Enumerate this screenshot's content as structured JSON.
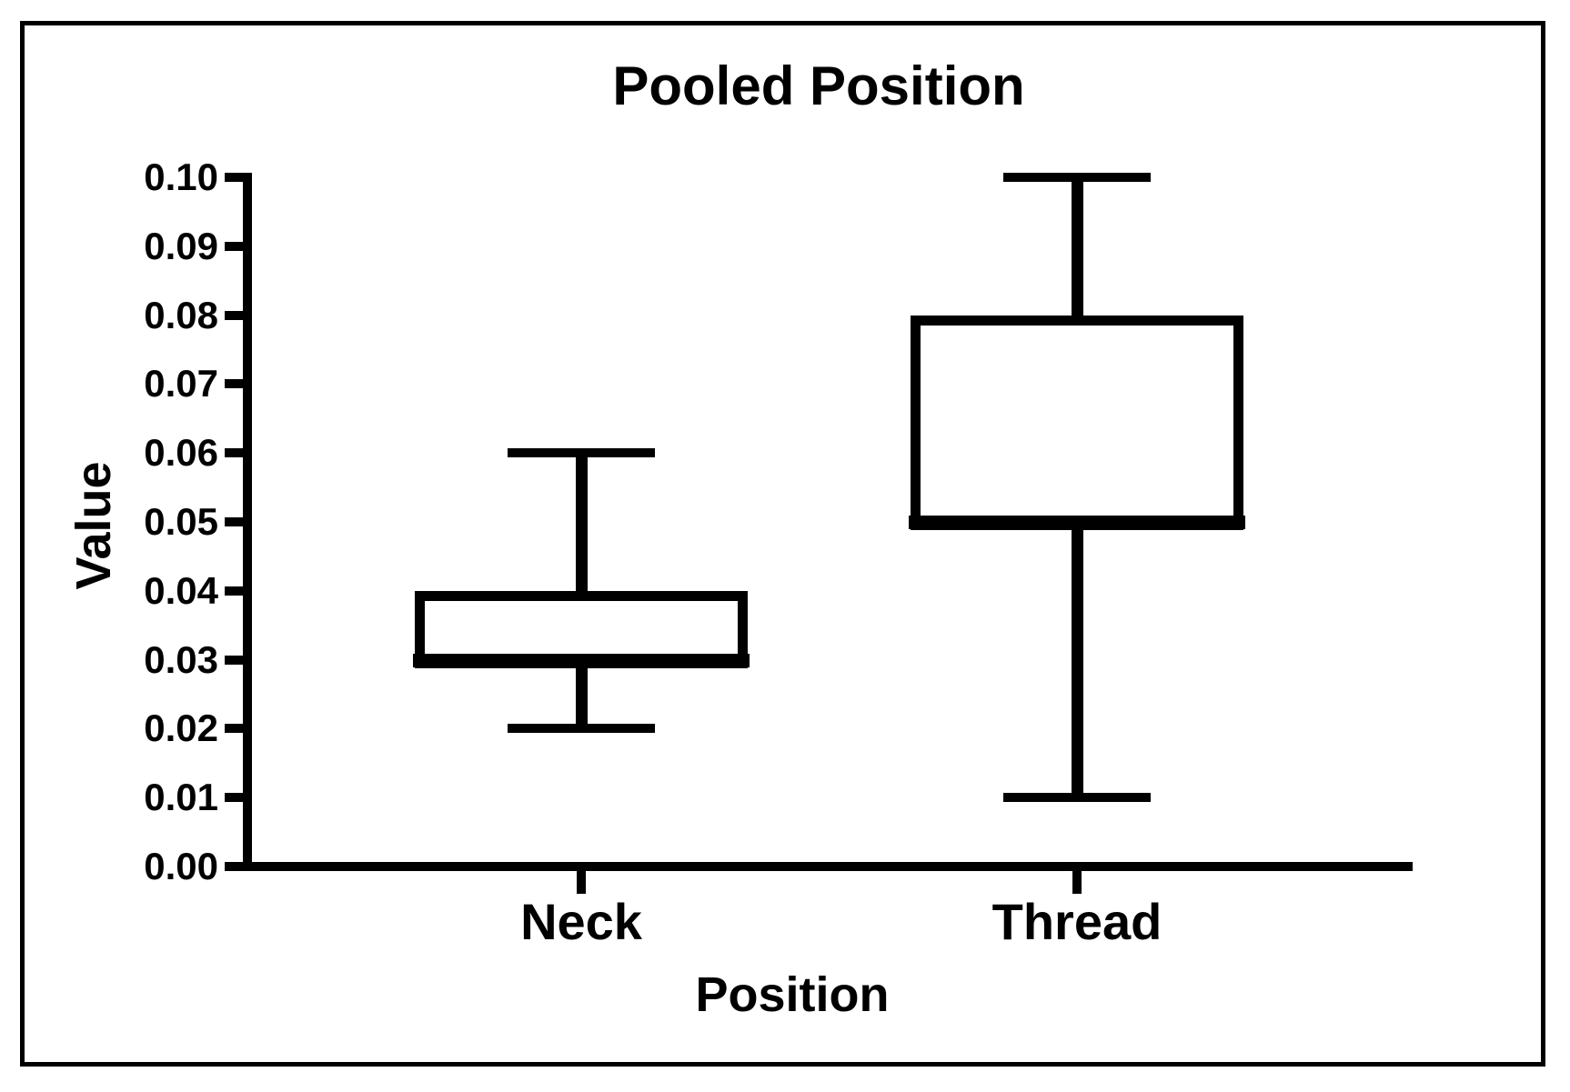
{
  "figure": {
    "background": "#ffffff",
    "ink_color": "#000000"
  },
  "chart_data": {
    "type": "box",
    "title": "Pooled Position",
    "xlabel": "Position",
    "ylabel": "Value",
    "categories": [
      "Neck",
      "Thread"
    ],
    "series": [
      {
        "category": "Neck",
        "whisker_low": 0.02,
        "q1": 0.03,
        "median": 0.03,
        "q3": 0.04,
        "whisker_high": 0.06
      },
      {
        "category": "Thread",
        "whisker_low": 0.01,
        "q1": 0.05,
        "median": 0.05,
        "q3": 0.08,
        "whisker_high": 0.1
      }
    ],
    "ylim": [
      0.0,
      0.1
    ],
    "ytick_step": 0.01,
    "ytick_labels": [
      "0.00",
      "0.01",
      "0.02",
      "0.03",
      "0.04",
      "0.05",
      "0.06",
      "0.07",
      "0.08",
      "0.09",
      "0.10"
    ],
    "xtick_labels": [
      "Neck",
      "Thread"
    ],
    "grid": false,
    "legend": null,
    "box_fill": "#ffffff",
    "stroke_color": "#000000",
    "median_position_note": "median line drawn coincident with lower quartile edge of each box"
  }
}
